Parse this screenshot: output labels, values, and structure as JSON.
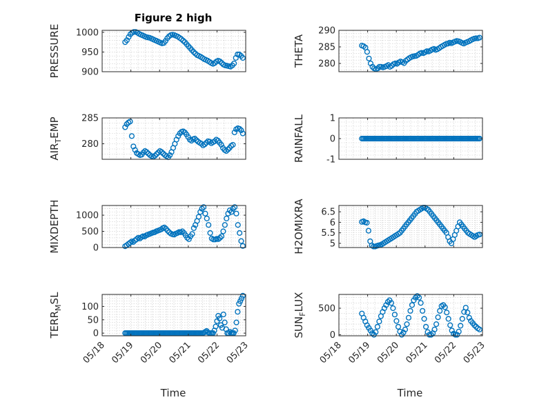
{
  "colors": {
    "marker": "#0072BD",
    "axis": "#262626",
    "grid": "#c8c8c8",
    "background": "#ffffff"
  },
  "x_axis": {
    "ticks": [
      "05/18",
      "05/19",
      "05/20",
      "05/21",
      "05/22",
      "05/23"
    ],
    "label": "Time"
  },
  "chart_data": [
    {
      "type": "scatter",
      "title": "Figure 2 high",
      "ylabel": "PRESSURE",
      "ylim": [
        900,
        1005
      ],
      "yticks": [
        "900",
        "950",
        "1000"
      ],
      "ytick_values": [
        900,
        950,
        1000
      ],
      "grid": true,
      "x_start": 18.8,
      "x_end": 22.9,
      "y": [
        975,
        980,
        988,
        995,
        999,
        1001,
        1001,
        999,
        996,
        994,
        992,
        990,
        988,
        987,
        986,
        984,
        982,
        980,
        978,
        976,
        974,
        972,
        973,
        978,
        985,
        990,
        993,
        994,
        993,
        991,
        989,
        986,
        983,
        979,
        975,
        970,
        965,
        960,
        955,
        950,
        946,
        942,
        940,
        938,
        935,
        932,
        930,
        928,
        925,
        922,
        920,
        922,
        926,
        928,
        926,
        922,
        918,
        916,
        915,
        914,
        913,
        916,
        921,
        935,
        944,
        944,
        940,
        935
      ]
    },
    {
      "type": "scatter",
      "ylabel": "THETA",
      "ylim": [
        277.5,
        290
      ],
      "yticks": [
        "280",
        "285",
        "290"
      ],
      "ytick_values": [
        280,
        285,
        290
      ],
      "grid": true,
      "x_start": 18.8,
      "x_end": 22.9,
      "y": [
        285.4,
        285.2,
        284.8,
        283.5,
        281.5,
        280,
        279,
        278.5,
        278.3,
        278.5,
        279,
        279,
        278.8,
        279,
        279.2,
        279.5,
        279,
        279.3,
        279.8,
        280,
        279.9,
        280.3,
        280.6,
        280.4,
        280.1,
        280.8,
        281.2,
        281.6,
        281.9,
        282.1,
        282.2,
        282.3,
        282.6,
        283,
        283.2,
        283.1,
        283.4,
        283.7,
        283.6,
        283.9,
        284.2,
        284.4,
        284.1,
        284.3,
        284.6,
        285,
        285.3,
        285.6,
        285.9,
        286,
        286.3,
        286.1,
        286.4,
        286.6,
        286.8,
        286.7,
        286.5,
        286.2,
        286,
        286.3,
        286.5,
        286.7,
        287,
        287.3,
        287.5,
        287.6,
        287.6,
        287.8
      ]
    },
    {
      "type": "scatter",
      "ylabel": "AIR_TEMP",
      "ylim": [
        277,
        285
      ],
      "yticks": [
        "280",
        "285"
      ],
      "ytick_values": [
        280,
        285
      ],
      "grid": true,
      "x_start": 18.8,
      "x_end": 22.9,
      "y": [
        283.2,
        283.8,
        284.1,
        284.3,
        281.5,
        279.5,
        278.8,
        278.2,
        278,
        277.8,
        277.9,
        278.3,
        278.6,
        278.4,
        278.1,
        277.8,
        277.6,
        277.5,
        277.7,
        278,
        278.3,
        278.6,
        278.4,
        278.1,
        277.8,
        277.6,
        277.4,
        277.8,
        278.4,
        279.2,
        280,
        280.8,
        281.5,
        282,
        282.3,
        282.4,
        282.2,
        281.8,
        281.3,
        280.8,
        280.6,
        280.9,
        281,
        280.7,
        280.4,
        280.2,
        280,
        279.7,
        279.9,
        280.2,
        280.5,
        280.4,
        280.1,
        280.3,
        280.5,
        280.8,
        280.6,
        280.2,
        279.8,
        279.2,
        278.8,
        278.6,
        278.9,
        279.2,
        279.6,
        279.8,
        282.2,
        282.8,
        283,
        282.9,
        282.6,
        282
      ]
    },
    {
      "type": "scatter",
      "ylabel": "RAINFALL",
      "ylim": [
        -1,
        1
      ],
      "yticks": [
        "-1",
        "0",
        "1"
      ],
      "ytick_values": [
        -1,
        0,
        1
      ],
      "grid": true,
      "x_start": 18.8,
      "x_end": 22.9,
      "constant_value": 0,
      "count": 90
    },
    {
      "type": "scatter",
      "ylabel": "MIXDEPTH",
      "ylim": [
        0,
        1300
      ],
      "yticks": [
        "0",
        "500",
        "1000"
      ],
      "ytick_values": [
        0,
        500,
        1000
      ],
      "grid": true,
      "x_start": 18.8,
      "x_end": 22.9,
      "y": [
        40,
        70,
        110,
        150,
        190,
        170,
        220,
        260,
        300,
        280,
        320,
        350,
        340,
        380,
        400,
        420,
        440,
        460,
        470,
        500,
        520,
        540,
        560,
        600,
        620,
        580,
        520,
        470,
        430,
        410,
        400,
        430,
        450,
        480,
        470,
        500,
        450,
        380,
        300,
        260,
        350,
        420,
        600,
        700,
        820,
        950,
        1100,
        1200,
        1250,
        1050,
        900,
        700,
        450,
        280,
        250,
        250,
        270,
        260,
        300,
        350,
        500,
        700,
        900,
        1050,
        1150,
        1100,
        1200,
        1250,
        1050,
        700,
        450,
        200,
        50
      ]
    },
    {
      "type": "scatter",
      "ylabel": "H2OMIXRA",
      "ylim": [
        4.8,
        6.8
      ],
      "yticks": [
        "5",
        "5.5",
        "6",
        "6.5"
      ],
      "ytick_values": [
        5,
        5.5,
        6,
        6.5
      ],
      "grid": true,
      "x_start": 18.8,
      "x_end": 22.9,
      "y": [
        6.02,
        6.05,
        6.0,
        5.98,
        5.6,
        5.1,
        4.9,
        4.85,
        4.85,
        4.88,
        4.9,
        4.92,
        4.95,
        5.0,
        5.05,
        5.1,
        5.15,
        5.2,
        5.25,
        5.3,
        5.35,
        5.4,
        5.45,
        5.5,
        5.6,
        5.7,
        5.8,
        5.9,
        6.0,
        6.1,
        6.2,
        6.3,
        6.4,
        6.5,
        6.55,
        6.6,
        6.65,
        6.7,
        6.7,
        6.65,
        6.6,
        6.5,
        6.4,
        6.3,
        6.2,
        6.1,
        6.0,
        5.9,
        5.8,
        5.7,
        5.6,
        5.5,
        5.3,
        5.1,
        5.0,
        5.2,
        5.4,
        5.6,
        5.8,
        6.0,
        5.9,
        5.8,
        5.7,
        5.6,
        5.5,
        5.45,
        5.4,
        5.35,
        5.3,
        5.35,
        5.4,
        5.42
      ]
    },
    {
      "type": "scatter",
      "ylabel": "TERR_MSL",
      "ylim": [
        -10,
        145
      ],
      "yticks": [
        "0",
        "50",
        "100"
      ],
      "ytick_values": [
        0,
        50,
        100
      ],
      "grid": true,
      "x_start": 18.8,
      "x_end": 22.9,
      "y": [
        0,
        0,
        0,
        0,
        0,
        0,
        0,
        0,
        0,
        0,
        0,
        0,
        0,
        0,
        0,
        0,
        0,
        0,
        0,
        0,
        0,
        0,
        0,
        0,
        0,
        0,
        0,
        0,
        0,
        0,
        0,
        0,
        0,
        0,
        0,
        0,
        0,
        0,
        0,
        0,
        0,
        0,
        0,
        0,
        0,
        0,
        0,
        0,
        0,
        0,
        0,
        0,
        0,
        0,
        0,
        0,
        0,
        0,
        0,
        0,
        0,
        2,
        5,
        8,
        3,
        0,
        0,
        0,
        0,
        10,
        25,
        45,
        65,
        55,
        30,
        20,
        70,
        40,
        15,
        0,
        0,
        5,
        0,
        0,
        0,
        10,
        40,
        80,
        110,
        120,
        130,
        140
      ]
    },
    {
      "type": "scatter",
      "ylabel": "SUN_FLUX",
      "ylim": [
        -20,
        760
      ],
      "yticks": [
        "0",
        "500"
      ],
      "ytick_values": [
        0,
        500
      ],
      "grid": true,
      "x_start": 18.8,
      "x_end": 22.9,
      "y": [
        400,
        320,
        250,
        180,
        130,
        80,
        30,
        0,
        50,
        150,
        250,
        350,
        430,
        500,
        560,
        620,
        650,
        600,
        500,
        380,
        260,
        150,
        60,
        0,
        40,
        100,
        200,
        320,
        450,
        560,
        650,
        700,
        730,
        700,
        600,
        450,
        300,
        150,
        50,
        0,
        0,
        30,
        100,
        200,
        330,
        450,
        540,
        560,
        520,
        420,
        300,
        180,
        80,
        20,
        0,
        0,
        60,
        170,
        300,
        430,
        510,
        420,
        320,
        260,
        220,
        180,
        150,
        120,
        100
      ]
    }
  ]
}
